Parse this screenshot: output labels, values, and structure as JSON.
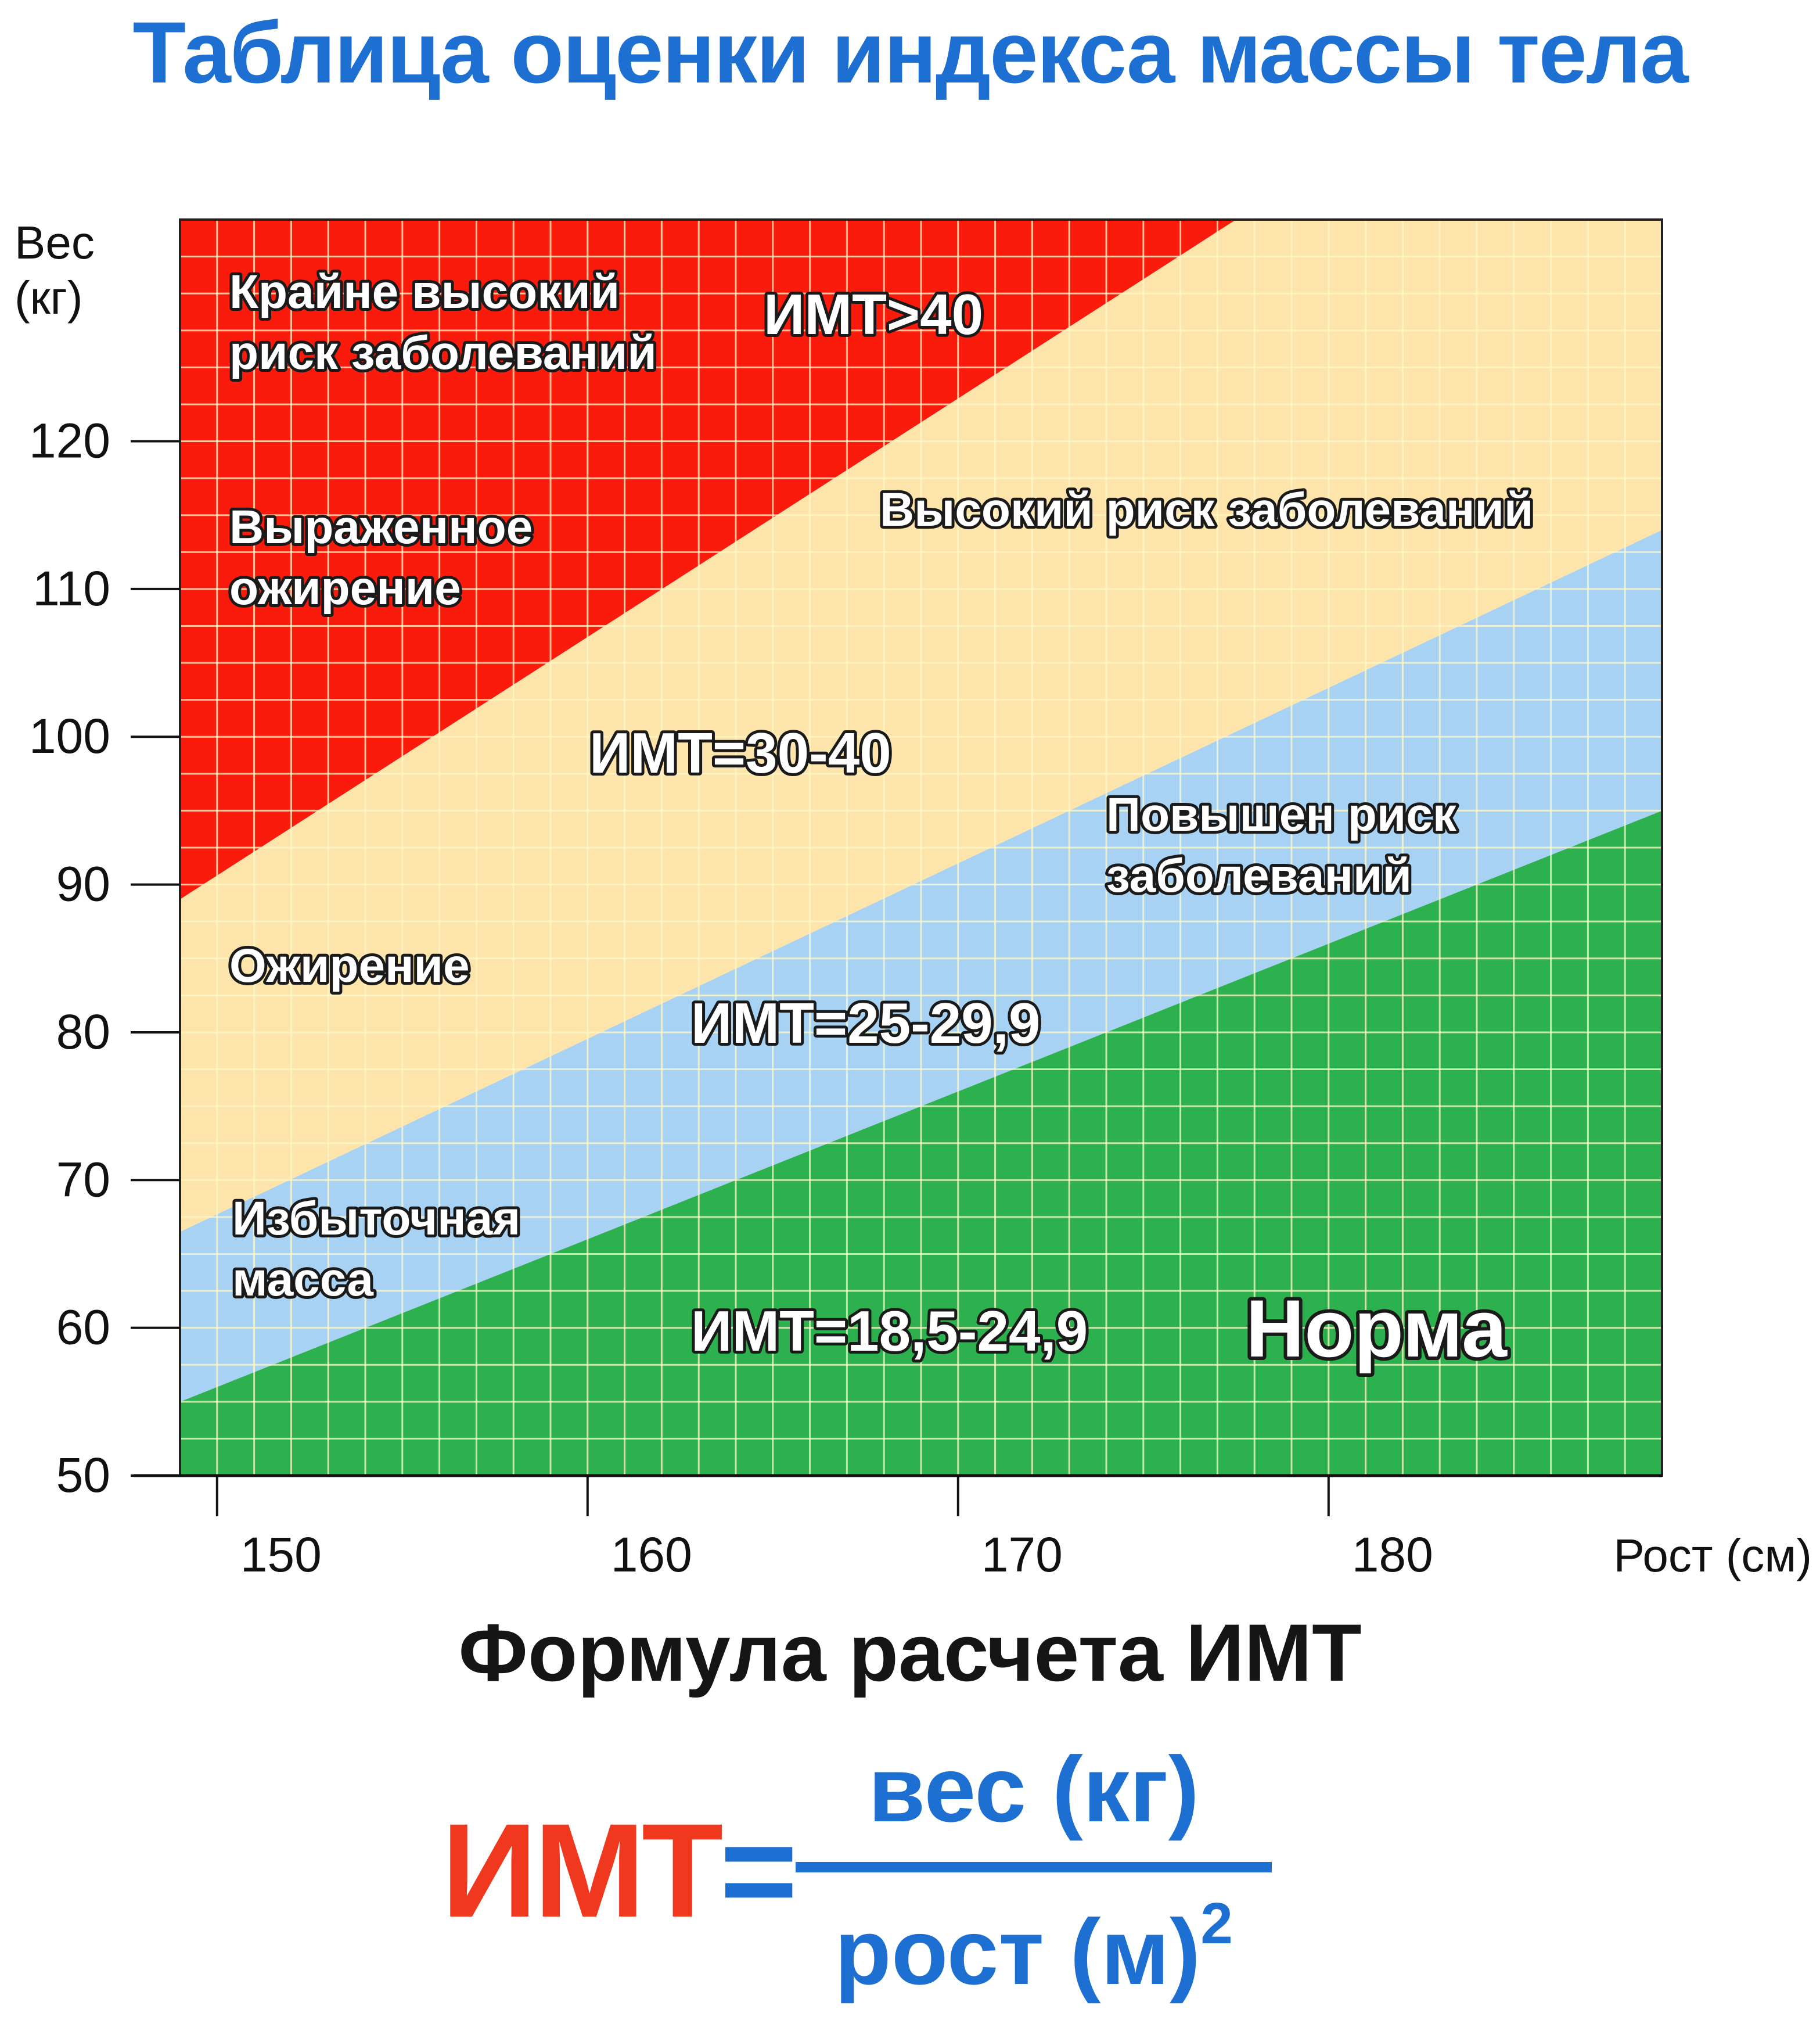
{
  "title": "Таблица оценки индекса массы тела",
  "chart_data": {
    "type": "area",
    "xlabel": "Рост (см)",
    "ylabel": "Вес (кг)",
    "ylabel_lines": [
      "Вес",
      "(кг)"
    ],
    "xlim": [
      149,
      189
    ],
    "ylim": [
      50,
      135
    ],
    "x_ticks": [
      150,
      160,
      170,
      180
    ],
    "y_ticks": [
      50,
      60,
      70,
      80,
      90,
      100,
      110,
      120
    ],
    "grid": true,
    "zones": [
      {
        "bmi": "ИМТ=18,5-24,9",
        "bmi_min": 18.5,
        "bmi_max": 24.9,
        "color": "#2db04e",
        "labels": [
          "Норма"
        ]
      },
      {
        "bmi": "ИМТ=25-29,9",
        "bmi_min": 25,
        "bmi_max": 29.9,
        "color": "#a7d2f3",
        "labels": [
          "Избыточная",
          "масса",
          "Повышен риск",
          "заболеваний"
        ]
      },
      {
        "bmi": "ИМТ=30-40",
        "bmi_min": 30,
        "bmi_max": 40,
        "color": "#fde4ab",
        "labels": [
          "Ожирение",
          "Высокий риск заболеваний"
        ]
      },
      {
        "bmi": "ИМТ>40",
        "bmi_min": 40,
        "bmi_max": null,
        "color": "#fb1b0c",
        "labels": [
          "Выраженное",
          "ожирение",
          "Крайне высокий",
          "риск заболеваний"
        ]
      }
    ],
    "boundaries": [
      {
        "name": "ИМТ=25",
        "x": [
          149,
          189
        ],
        "y": [
          55,
          95
        ]
      },
      {
        "name": "ИМТ=30",
        "x": [
          149,
          189
        ],
        "y": [
          66.5,
          114
        ]
      },
      {
        "name": "ИМТ=40",
        "x": [
          149,
          177.5
        ],
        "y": [
          89,
          135
        ]
      }
    ]
  },
  "labels": {
    "extreme_1": "Крайне высокий",
    "extreme_2": "риск заболеваний",
    "bmi_over_40": "ИМТ>40",
    "pronounced_1": "Выраженное",
    "pronounced_2": "ожирение",
    "high_risk": "Высокий риск заболеваний",
    "bmi_30_40": "ИМТ=30-40",
    "increased_1": "Повышен риск",
    "increased_2": "заболеваний",
    "obesity": "Ожирение",
    "bmi_25_29": "ИМТ=25-29,9",
    "overweight_1": "Избыточная",
    "overweight_2": "масса",
    "bmi_18_24": "ИМТ=18,5-24,9",
    "norm": "Норма"
  },
  "formula": {
    "title": "Формула расчета ИМТ",
    "lhs_name": "ИМТ",
    "lhs_eq": "=",
    "numerator": "вес (кг)",
    "denominator": "рост (м)",
    "exponent": "2"
  }
}
